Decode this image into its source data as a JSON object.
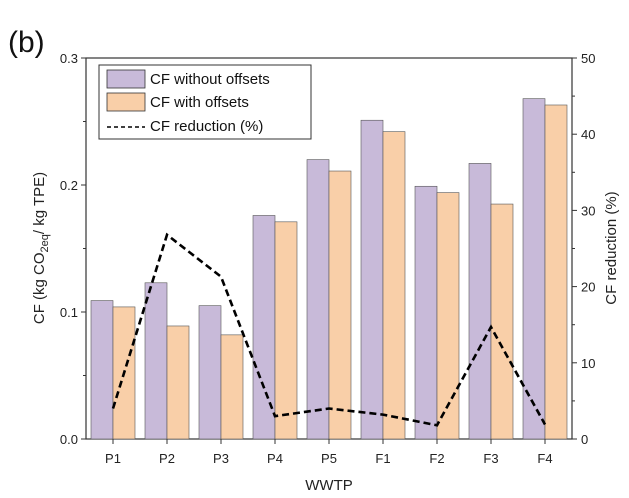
{
  "chart_data": {
    "type": "bar",
    "panel_label": "(b)",
    "xlabel": "WWTP",
    "ylabel_left": "CF (kg CO2eq/ kg TPE)",
    "ylabel_left_parts": {
      "before": "CF (kg CO",
      "sub": "2eq",
      "after": "/ kg TPE)"
    },
    "ylabel_right": "CF reduction (%)",
    "categories": [
      "P1",
      "P2",
      "P3",
      "P4",
      "P5",
      "F1",
      "F2",
      "F3",
      "F4"
    ],
    "ylim_left": [
      0,
      0.3
    ],
    "yticks_left": [
      "0.0",
      "0.1",
      "0.2",
      "0.3"
    ],
    "ylim_right": [
      0,
      50
    ],
    "yticks_right": [
      "0",
      "10",
      "20",
      "30",
      "40",
      "50"
    ],
    "series": [
      {
        "name": "CF without offsets",
        "kind": "bar",
        "axis": "left",
        "color": "#C8BAD9",
        "values": [
          0.109,
          0.123,
          0.105,
          0.176,
          0.22,
          0.251,
          0.199,
          0.217,
          0.268
        ]
      },
      {
        "name": "CF with offsets",
        "kind": "bar",
        "axis": "left",
        "color": "#F9CFA8",
        "values": [
          0.104,
          0.089,
          0.082,
          0.171,
          0.211,
          0.242,
          0.194,
          0.185,
          0.263
        ]
      },
      {
        "name": "CF reduction (%)",
        "kind": "line",
        "axis": "right",
        "color": "#000000",
        "dash": "dashed",
        "values": [
          4.0,
          26.8,
          21.3,
          3.0,
          4.0,
          3.2,
          1.8,
          14.7,
          1.9
        ]
      }
    ],
    "legend_position": "top-left",
    "grid": false
  }
}
